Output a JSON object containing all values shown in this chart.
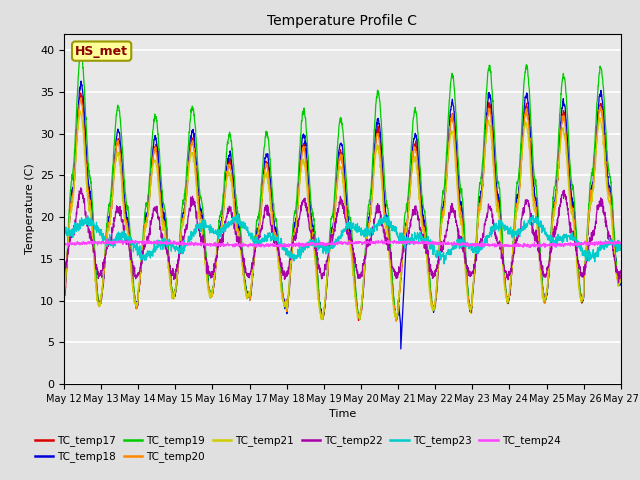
{
  "title": "Temperature Profile C",
  "xlabel": "Time",
  "ylabel": "Temperature (C)",
  "ylim": [
    0,
    42
  ],
  "yticks": [
    0,
    5,
    10,
    15,
    20,
    25,
    30,
    35,
    40
  ],
  "annotation_text": "HS_met",
  "xtick_labels": [
    "May 12",
    "May 13",
    "May 14",
    "May 15",
    "May 16",
    "May 17",
    "May 18",
    "May 19",
    "May 20",
    "May 21",
    "May 22",
    "May 23",
    "May 24",
    "May 25",
    "May 26",
    "May 27"
  ],
  "series_names": [
    "TC_temp17",
    "TC_temp18",
    "TC_temp19",
    "TC_temp20",
    "TC_temp21",
    "TC_temp22",
    "TC_temp23",
    "TC_temp24"
  ],
  "series_colors": [
    "#dd0000",
    "#0000dd",
    "#00cc00",
    "#ff8800",
    "#cccc00",
    "#aa00aa",
    "#00cccc",
    "#ff44ff"
  ],
  "background_color": "#e0e0e0",
  "plot_bg_color": "#e8e8e8",
  "grid_color": "#ffffff",
  "figsize": [
    6.4,
    4.8
  ],
  "dpi": 100
}
